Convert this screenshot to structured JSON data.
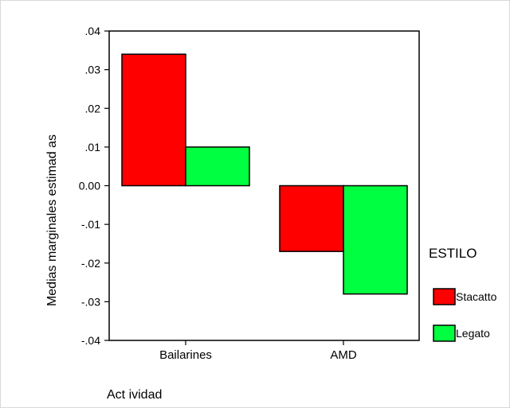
{
  "chart_data": {
    "type": "bar",
    "categories": [
      "Bailarines",
      "AMD"
    ],
    "series": [
      {
        "name": "Stacatto",
        "values": [
          0.034,
          -0.017
        ],
        "color": "#ff0000"
      },
      {
        "name": "Legato",
        "values": [
          0.01,
          -0.028
        ],
        "color": "#00ff40"
      }
    ],
    "xlabel": "Act ividad",
    "ylabel": "Medias marginales estimad as",
    "ylim": [
      -0.04,
      0.04
    ],
    "yticks": [
      0.04,
      0.03,
      0.02,
      0.01,
      0.0,
      -0.01,
      -0.02,
      -0.03,
      -0.04
    ],
    "ytick_labels": [
      ".04",
      ".03",
      ".02",
      ".01",
      "0.00",
      "-.01",
      "-.02",
      "-.03",
      "-.04"
    ],
    "legend": {
      "title": "ESTILO",
      "placement": "right"
    },
    "grid": false
  }
}
